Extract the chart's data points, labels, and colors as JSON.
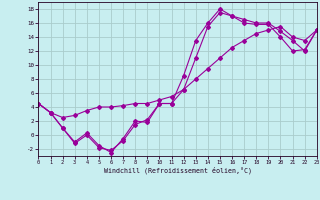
{
  "background_color": "#c8eef0",
  "line_color": "#990099",
  "grid_color": "#aacccc",
  "xlabel": "Windchill (Refroidissement éolien,°C)",
  "xlim": [
    0,
    23
  ],
  "ylim": [
    -3,
    19
  ],
  "yticks": [
    -2,
    0,
    2,
    4,
    6,
    8,
    10,
    12,
    14,
    16,
    18
  ],
  "xticks": [
    0,
    1,
    2,
    3,
    4,
    5,
    6,
    7,
    8,
    9,
    10,
    11,
    12,
    13,
    14,
    15,
    16,
    17,
    18,
    19,
    20,
    21,
    22,
    23
  ],
  "line1_x": [
    0,
    1,
    2,
    3,
    4,
    5,
    6,
    7,
    8,
    9,
    10,
    11,
    12,
    13,
    14,
    15,
    16,
    17,
    18,
    19,
    20,
    21,
    22,
    23
  ],
  "line1_y": [
    4.5,
    3.2,
    1.0,
    -1.0,
    0.3,
    -1.5,
    -2.5,
    -0.5,
    2.0,
    1.8,
    4.5,
    4.5,
    6.5,
    11.0,
    15.5,
    17.5,
    17.0,
    16.5,
    16.0,
    16.0,
    14.8,
    13.5,
    12.0,
    15.0
  ],
  "line2_x": [
    0,
    1,
    2,
    3,
    4,
    5,
    6,
    7,
    8,
    9,
    10,
    11,
    12,
    13,
    14,
    15,
    16,
    17,
    18,
    19,
    20,
    21,
    22,
    23
  ],
  "line2_y": [
    4.5,
    3.2,
    1.0,
    -1.2,
    0.0,
    -1.8,
    -2.2,
    -0.8,
    1.5,
    2.2,
    4.5,
    4.5,
    8.5,
    13.5,
    16.0,
    18.0,
    17.0,
    16.0,
    15.8,
    15.8,
    14.0,
    12.0,
    12.2,
    15.0
  ],
  "line3_x": [
    0,
    1,
    2,
    3,
    4,
    5,
    6,
    7,
    8,
    9,
    10,
    11,
    12,
    13,
    14,
    15,
    16,
    17,
    18,
    19,
    20,
    21,
    22,
    23
  ],
  "line3_y": [
    4.5,
    3.2,
    2.5,
    2.8,
    3.5,
    4.0,
    4.0,
    4.2,
    4.5,
    4.5,
    5.0,
    5.5,
    6.5,
    8.0,
    9.5,
    11.0,
    12.5,
    13.5,
    14.5,
    15.0,
    15.5,
    14.0,
    13.5,
    15.0
  ]
}
